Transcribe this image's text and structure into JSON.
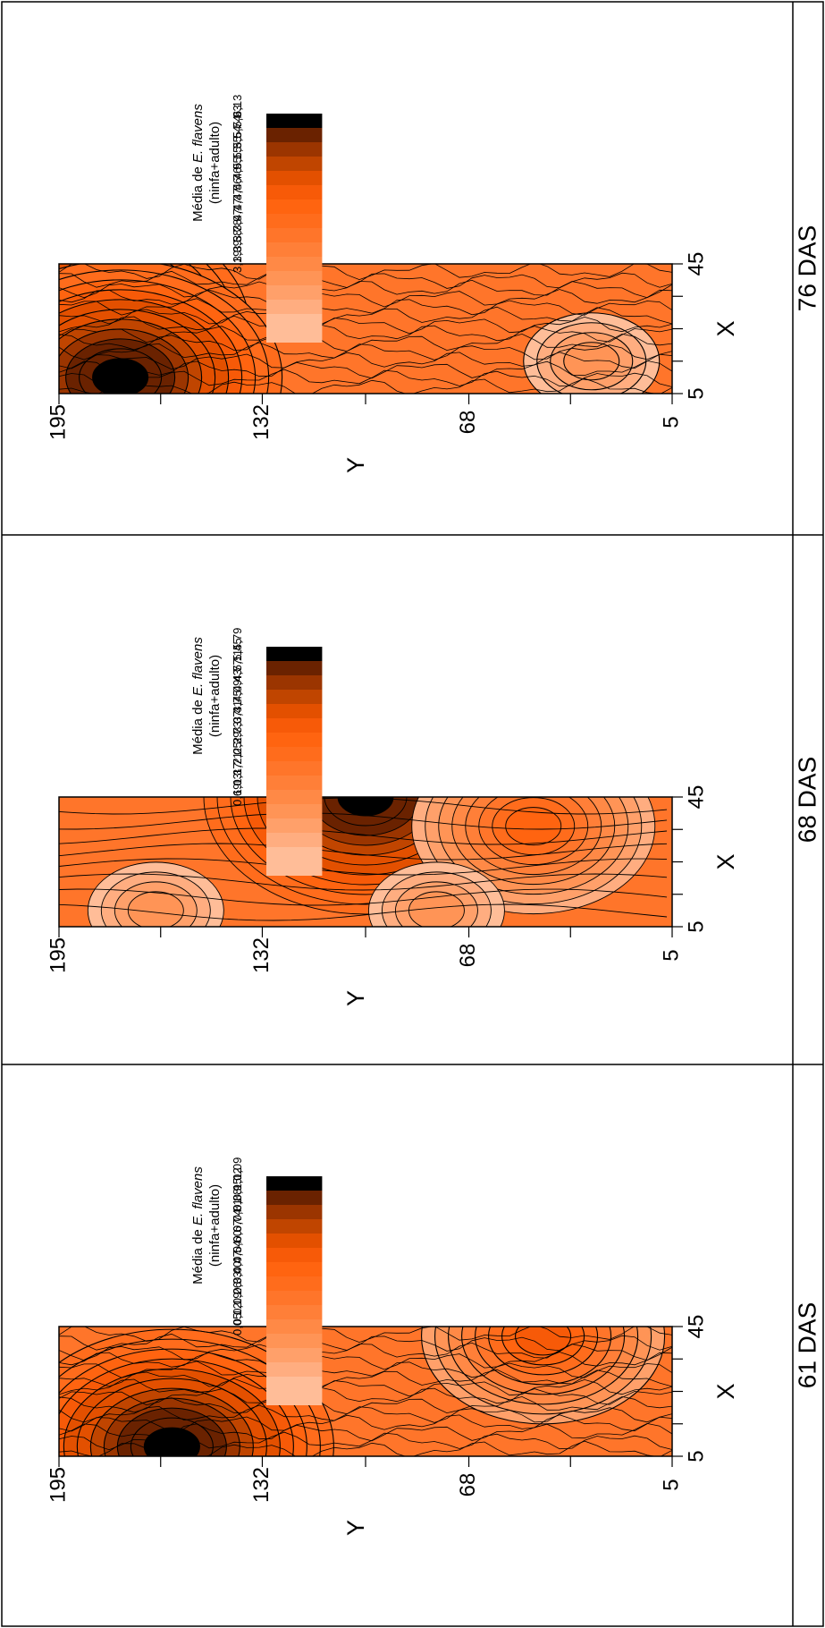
{
  "colors": {
    "ramp": [
      "#000000",
      "#6a2200",
      "#9b3500",
      "#c04500",
      "#e35000",
      "#f75a08",
      "#ff6410",
      "#ff6c1c",
      "#ff752a",
      "#ff7f38",
      "#ff8946",
      "#ff9456",
      "#ffa06a",
      "#ffad80",
      "#ffbd98"
    ],
    "lines": "#000000",
    "frame": "#000000"
  },
  "legend": {
    "title_prefix": "Média de ",
    "title_species": "E. flavens",
    "title_line2": "(ninfa+adulto)"
  },
  "chart_data": [
    {
      "type": "heatmap",
      "name": "61 DAS",
      "xlabel": "X",
      "ylabel": "Y",
      "xlim": [
        5,
        45
      ],
      "ylim": [
        5,
        195
      ],
      "x_ticks": [
        "5",
        "45"
      ],
      "y_ticks": [
        "195",
        "132",
        "68",
        "5"
      ],
      "legend_values": [
        "1,09",
        "1,02",
        "0,95",
        "0,88",
        "0,81",
        "0,74",
        "0,67",
        "0,60",
        "0,54",
        "0,47",
        "0,40",
        "0,33",
        "0,26",
        "0,19",
        "0,12",
        "0,05"
      ],
      "contours": "irregular",
      "hotspots": [
        {
          "x": 8,
          "y": 160,
          "level": 1.09
        },
        {
          "x": 42,
          "y": 45,
          "level": 0.74
        }
      ]
    },
    {
      "type": "heatmap",
      "name": "68 DAS",
      "xlabel": "X",
      "ylabel": "Y",
      "xlim": [
        5,
        45
      ],
      "ylim": [
        5,
        195
      ],
      "x_ticks": [
        "5",
        "45"
      ],
      "y_ticks": [
        "195",
        "132",
        "68",
        "5"
      ],
      "legend_values": [
        "5,79",
        "5,45",
        "5,11",
        "4,77",
        "4,43",
        "4,09",
        "3,75",
        "3,41",
        "3,07",
        "2,73",
        "2,39",
        "2,05",
        "1,71",
        "1,37",
        "1,03",
        "0,69"
      ],
      "contours": "smooth",
      "hotspots": [
        {
          "x": 45,
          "y": 100,
          "level": 5.79
        },
        {
          "x": 36,
          "y": 48,
          "level": 3.75
        },
        {
          "x": 10,
          "y": 165,
          "level": 1.03
        },
        {
          "x": 10,
          "y": 78,
          "level": 1.03
        }
      ]
    },
    {
      "type": "heatmap",
      "name": "76 DAS",
      "xlabel": "X",
      "ylabel": "Y",
      "xlim": [
        5,
        45
      ],
      "ylim": [
        5,
        195
      ],
      "x_ticks": [
        "5",
        "45"
      ],
      "y_ticks": [
        "195",
        "132",
        "68",
        "5"
      ],
      "legend_values": [
        "6,13",
        "5,93",
        "5,74",
        "5,54",
        "5,35",
        "5,15",
        "4,95",
        "4,76",
        "4,56",
        "4,37",
        "4,17",
        "3,97",
        "3,78",
        "3,58",
        "3,39",
        "3,19"
      ],
      "contours": "irregular",
      "hotspots": [
        {
          "x": 25,
          "y": 186,
          "level": 6.13
        },
        {
          "x": 10,
          "y": 176,
          "level": 6.13
        },
        {
          "x": 15,
          "y": 30,
          "level": 3.19
        }
      ]
    }
  ]
}
